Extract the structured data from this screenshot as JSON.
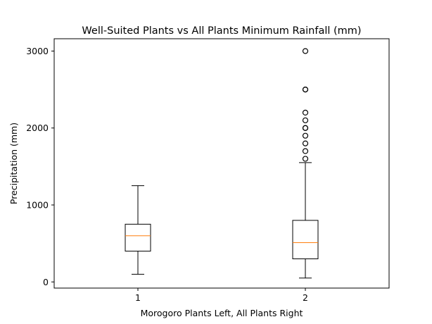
{
  "chart_data": {
    "type": "box",
    "title": "Well-Suited Plants vs All Plants Minimum Rainfall (mm)",
    "xlabel": "Morogoro Plants Left, All Plants Right",
    "ylabel": "Precipitation (mm)",
    "ylim": [
      -80,
      3160
    ],
    "yticks": [
      0,
      1000,
      2000,
      3000
    ],
    "grid": false,
    "categories": [
      "1",
      "2"
    ],
    "boxes": [
      {
        "category": "1",
        "whisker_low": 100,
        "q1": 400,
        "median": 600,
        "q3": 750,
        "whisker_high": 1250,
        "outliers": []
      },
      {
        "category": "2",
        "whisker_low": 50,
        "q1": 300,
        "median": 510,
        "q3": 800,
        "whisker_high": 1550,
        "outliers": [
          1600,
          1700,
          1800,
          1900,
          2000,
          2000,
          2100,
          2200,
          2500,
          2500,
          3000
        ]
      }
    ],
    "colors": {
      "box": "#000000",
      "median": "#ff7f0e",
      "outlier": "#000000"
    }
  }
}
